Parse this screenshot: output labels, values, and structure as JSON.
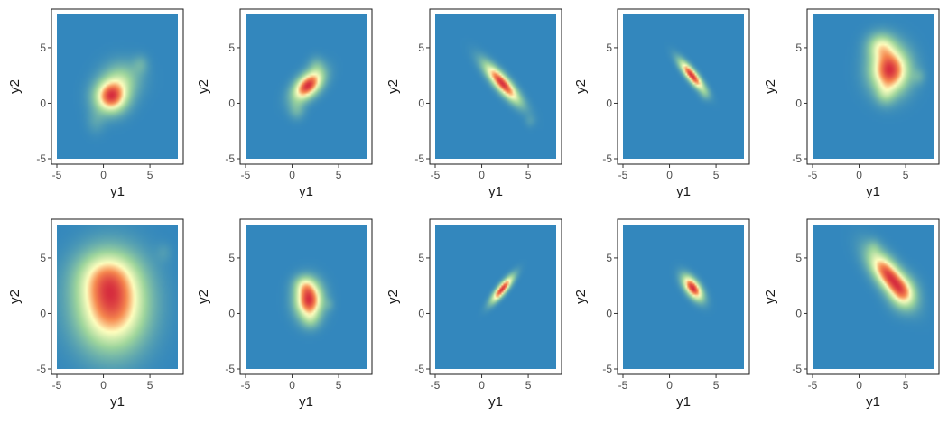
{
  "chart_data": {
    "type": "heatmap",
    "layout": "2x5 grid of 2D density panels",
    "xlabel": "y1",
    "ylabel": "y2",
    "xlim": [
      -5,
      8
    ],
    "ylim": [
      -5,
      8
    ],
    "x_ticks": [
      -5,
      0,
      5
    ],
    "y_ticks": [
      -5,
      0,
      5
    ],
    "grid": false,
    "colors": {
      "background": "#3387bd",
      "low": "#3387bd",
      "mid_low": "#9fd69c",
      "mid": "#ffffbf",
      "mid_high": "#f6894f",
      "high": "#d62d3e"
    },
    "panels": [
      {
        "peak": [
          0.8,
          0.6
        ],
        "components": [
          {
            "x": 0.8,
            "y": 0.6,
            "sx": 1.2,
            "sy": 1.0,
            "rho": 0.0,
            "w": 1.0
          },
          {
            "x": 2.0,
            "y": 2.2,
            "sx": 1.4,
            "sy": 1.1,
            "rho": 0.0,
            "w": 0.35
          },
          {
            "x": 4.0,
            "y": 3.5,
            "sx": 0.6,
            "sy": 0.6,
            "rho": 0.0,
            "w": 0.15
          },
          {
            "x": -0.8,
            "y": -1.6,
            "sx": 0.7,
            "sy": 0.8,
            "rho": 0.0,
            "w": 0.12
          }
        ]
      },
      {
        "peak": [
          1.8,
          1.6
        ],
        "components": [
          {
            "x": 1.7,
            "y": 1.6,
            "sx": 1.1,
            "sy": 0.9,
            "rho": 0.5,
            "w": 1.0
          },
          {
            "x": 0.5,
            "y": -0.6,
            "sx": 0.6,
            "sy": 0.6,
            "rho": 0.0,
            "w": 0.18
          },
          {
            "x": 2.6,
            "y": 3.4,
            "sx": 0.6,
            "sy": 0.6,
            "rho": 0.0,
            "w": 0.15
          }
        ]
      },
      {
        "peak": [
          2.3,
          1.6
        ],
        "components": [
          {
            "x": 2.2,
            "y": 1.8,
            "sx": 1.3,
            "sy": 1.2,
            "rho": -0.85,
            "w": 1.0
          },
          {
            "x": 5.2,
            "y": -1.6,
            "sx": 0.4,
            "sy": 0.4,
            "rho": 0.0,
            "w": 0.08
          }
        ]
      },
      {
        "peak": [
          2.4,
          2.4
        ],
        "components": [
          {
            "x": 2.4,
            "y": 2.5,
            "sx": 0.9,
            "sy": 0.9,
            "rho": -0.85,
            "w": 1.0
          },
          {
            "x": 3.8,
            "y": 0.8,
            "sx": 0.4,
            "sy": 0.4,
            "rho": 0.0,
            "w": 0.1
          }
        ]
      },
      {
        "peak": [
          3.2,
          2.8
        ],
        "components": [
          {
            "x": 3.3,
            "y": 3.0,
            "sx": 1.4,
            "sy": 1.4,
            "rho": 0.0,
            "w": 1.0
          },
          {
            "x": 2.3,
            "y": 5.2,
            "sx": 1.0,
            "sy": 0.8,
            "rho": 0.0,
            "w": 0.4
          },
          {
            "x": 6.4,
            "y": 2.4,
            "sx": 0.5,
            "sy": 0.5,
            "rho": 0.0,
            "w": 0.12
          },
          {
            "x": 2.8,
            "y": 0.8,
            "sx": 0.7,
            "sy": 0.7,
            "rho": 0.0,
            "w": 0.2
          }
        ]
      },
      {
        "peak": [
          0.9,
          0.6
        ],
        "components": [
          {
            "x": 0.9,
            "y": 0.8,
            "sx": 2.6,
            "sy": 2.8,
            "rho": 0.0,
            "w": 1.0
          },
          {
            "x": 0.2,
            "y": 3.5,
            "sx": 2.2,
            "sy": 1.6,
            "rho": 0.0,
            "w": 0.35
          },
          {
            "x": 6.5,
            "y": 5.5,
            "sx": 0.6,
            "sy": 0.6,
            "rho": 0.0,
            "w": 0.08
          }
        ]
      },
      {
        "peak": [
          1.8,
          1.2
        ],
        "components": [
          {
            "x": 1.8,
            "y": 1.2,
            "sx": 1.0,
            "sy": 1.1,
            "rho": 0.0,
            "w": 1.0
          },
          {
            "x": 1.3,
            "y": 2.6,
            "sx": 0.8,
            "sy": 0.6,
            "rho": 0.0,
            "w": 0.3
          },
          {
            "x": 2.0,
            "y": -0.6,
            "sx": 0.7,
            "sy": 0.6,
            "rho": 0.0,
            "w": 0.18
          },
          {
            "x": 4.0,
            "y": 0.8,
            "sx": 0.4,
            "sy": 0.4,
            "rho": 0.0,
            "w": 0.08
          }
        ]
      },
      {
        "peak": [
          2.2,
          2.2
        ],
        "components": [
          {
            "x": 2.2,
            "y": 2.2,
            "sx": 0.8,
            "sy": 0.8,
            "rho": 0.85,
            "w": 1.0
          }
        ]
      },
      {
        "peak": [
          2.4,
          2.3
        ],
        "components": [
          {
            "x": 2.5,
            "y": 2.3,
            "sx": 0.75,
            "sy": 0.75,
            "rho": -0.6,
            "w": 1.0
          }
        ]
      },
      {
        "peak": [
          3.2,
          3.8
        ],
        "components": [
          {
            "x": 3.2,
            "y": 3.4,
            "sx": 1.5,
            "sy": 1.5,
            "rho": -0.7,
            "w": 1.0
          },
          {
            "x": 4.8,
            "y": 1.8,
            "sx": 1.0,
            "sy": 1.0,
            "rho": 0.0,
            "w": 0.4
          },
          {
            "x": 1.6,
            "y": 6.0,
            "sx": 0.5,
            "sy": 0.5,
            "rho": 0.0,
            "w": 0.1
          }
        ]
      }
    ]
  }
}
